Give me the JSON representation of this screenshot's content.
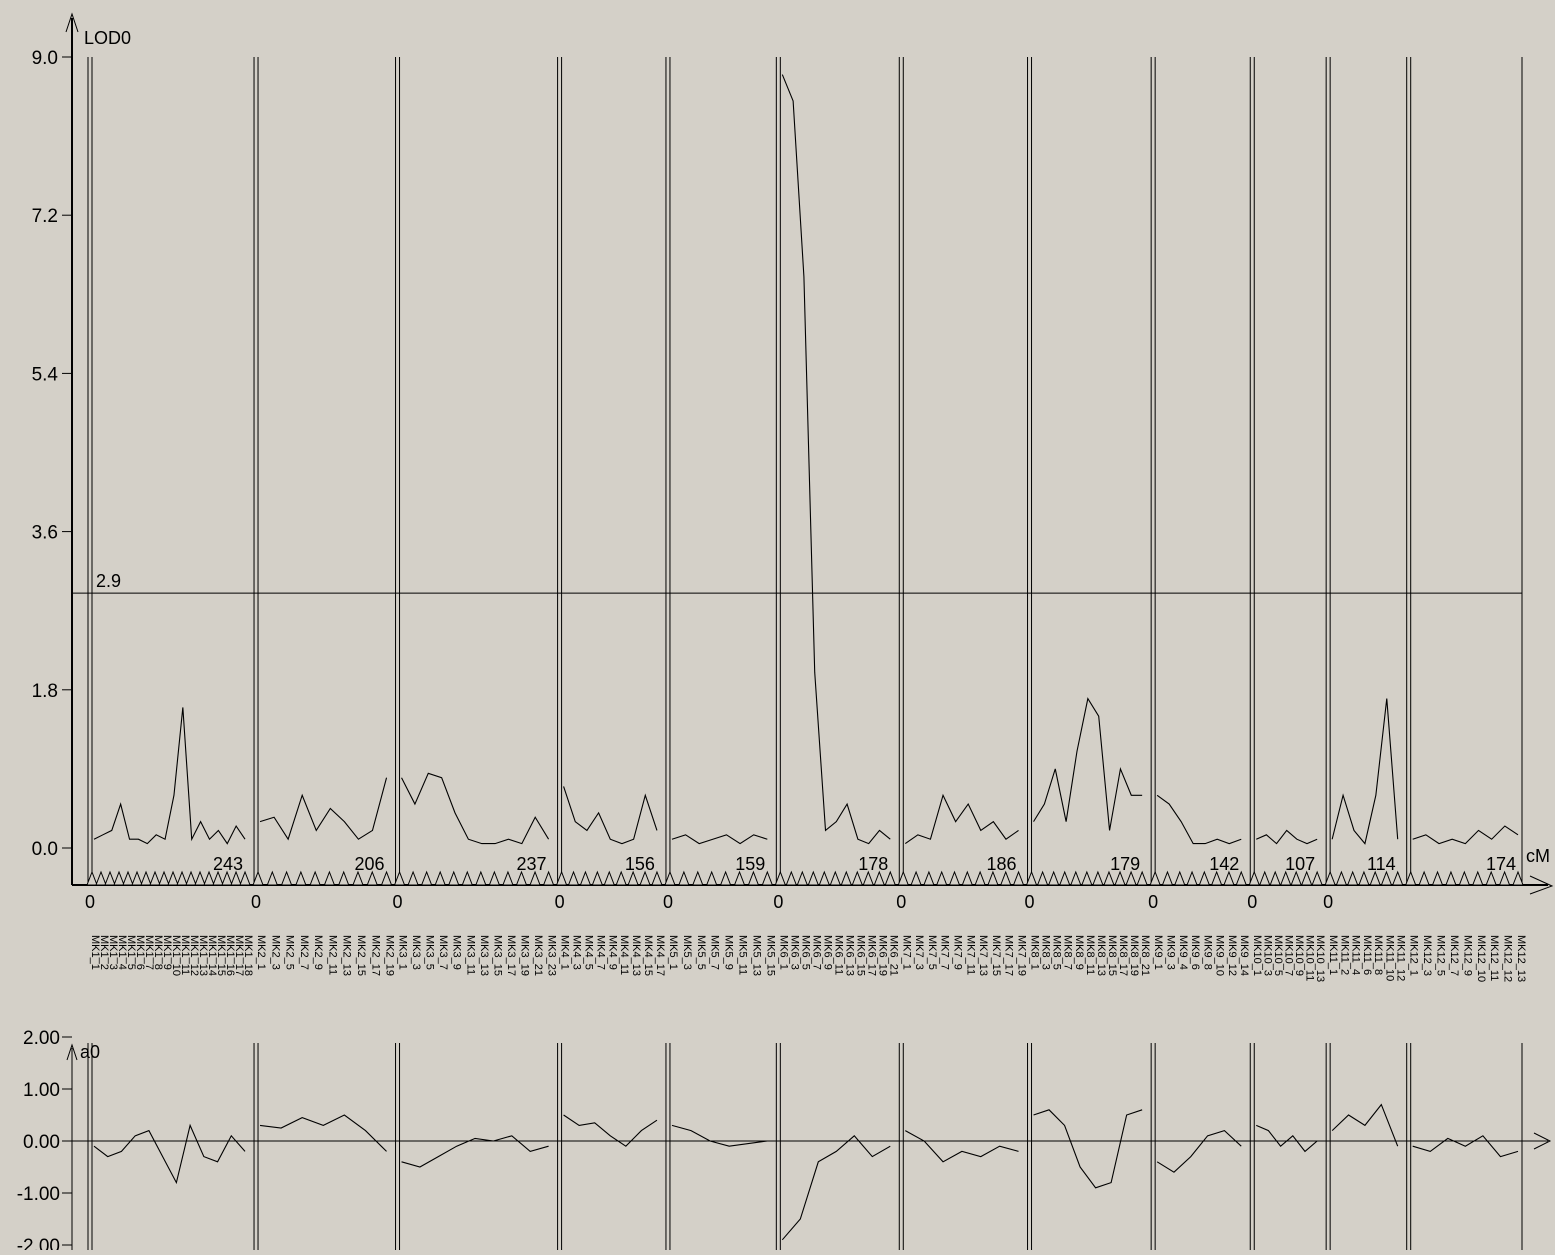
{
  "chart_data": [
    {
      "type": "line",
      "panel": "LOD profile",
      "ylabel": "LOD0",
      "xlabel": "cM",
      "ylim": [
        0.0,
        9.0
      ],
      "y_ticks": [
        "0.0",
        "1.8",
        "3.6",
        "5.4",
        "7.2",
        "9.0"
      ],
      "threshold": {
        "value": 2.9,
        "label": "2.9"
      },
      "chromosomes": [
        {
          "start_label": "0",
          "length": 243,
          "length_label": "243",
          "lod": [
            0.1,
            0.15,
            0.2,
            0.5,
            0.1,
            0.1,
            0.05,
            0.15,
            0.1,
            0.6,
            1.6,
            0.1,
            0.3,
            0.1,
            0.2,
            0.05,
            0.25,
            0.1
          ],
          "markers": [
            "MK1_1",
            "MK1_2",
            "MK1_3",
            "MK1_4",
            "MK1_5",
            "MK1_6",
            "MK1_7",
            "MK1_8",
            "MK1_9",
            "MK1_10",
            "MK1_11",
            "MK1_12",
            "MK1_13",
            "MK1_14",
            "MK1_15",
            "MK1_16",
            "MK1_17",
            "MK1_18"
          ]
        },
        {
          "start_label": "0",
          "length": 206,
          "length_label": "206",
          "lod": [
            0.3,
            0.35,
            0.1,
            0.6,
            0.2,
            0.45,
            0.3,
            0.1,
            0.2,
            0.8
          ],
          "markers": [
            "MK2_1",
            "MK2_3",
            "MK2_5",
            "MK2_7",
            "MK2_9",
            "MK2_11",
            "MK2_13",
            "MK2_15",
            "MK2_17",
            "MK2_19"
          ]
        },
        {
          "start_label": "0",
          "length": 237,
          "length_label": "237",
          "lod": [
            0.8,
            0.5,
            0.85,
            0.8,
            0.4,
            0.1,
            0.05,
            0.05,
            0.1,
            0.05,
            0.35,
            0.1
          ],
          "markers": [
            "MK3_1",
            "MK3_3",
            "MK3_5",
            "MK3_7",
            "MK3_9",
            "MK3_11",
            "MK3_13",
            "MK3_15",
            "MK3_17",
            "MK3_19",
            "MK3_21",
            "MK3_23"
          ]
        },
        {
          "start_label": "0",
          "length": 156,
          "length_label": "156",
          "lod": [
            0.7,
            0.3,
            0.2,
            0.4,
            0.1,
            0.05,
            0.1,
            0.6,
            0.2
          ],
          "markers": [
            "MK4_1",
            "MK4_3",
            "MK4_5",
            "MK4_7",
            "MK4_9",
            "MK4_11",
            "MK4_13",
            "MK4_15",
            "MK4_17"
          ]
        },
        {
          "start_label": "0",
          "length": 159,
          "length_label": "159",
          "lod": [
            0.1,
            0.15,
            0.05,
            0.1,
            0.15,
            0.05,
            0.15,
            0.1
          ],
          "markers": [
            "MK5_1",
            "MK5_3",
            "MK5_5",
            "MK5_7",
            "MK5_9",
            "MK5_11",
            "MK5_13",
            "MK5_15"
          ]
        },
        {
          "start_label": "0",
          "length": 178,
          "length_label": "178",
          "lod": [
            8.8,
            8.5,
            6.5,
            2.0,
            0.2,
            0.3,
            0.5,
            0.1,
            0.05,
            0.2,
            0.1
          ],
          "markers": [
            "MK6_1",
            "MK6_3",
            "MK6_5",
            "MK6_7",
            "MK6_9",
            "MK6_11",
            "MK6_13",
            "MK6_15",
            "MK6_17",
            "MK6_19",
            "MK6_21"
          ]
        },
        {
          "start_label": "0",
          "length": 186,
          "length_label": "186",
          "lod": [
            0.05,
            0.15,
            0.1,
            0.6,
            0.3,
            0.5,
            0.2,
            0.3,
            0.1,
            0.2
          ],
          "markers": [
            "MK7_1",
            "MK7_3",
            "MK7_5",
            "MK7_7",
            "MK7_9",
            "MK7_11",
            "MK7_13",
            "MK7_15",
            "MK7_17",
            "MK7_19"
          ]
        },
        {
          "start_label": "0",
          "length": 179,
          "length_label": "179",
          "lod": [
            0.3,
            0.5,
            0.9,
            0.3,
            1.1,
            1.7,
            1.5,
            0.2,
            0.9,
            0.6,
            0.6
          ],
          "markers": [
            "MK8_1",
            "MK8_3",
            "MK8_5",
            "MK8_7",
            "MK8_9",
            "MK8_11",
            "MK8_13",
            "MK8_15",
            "MK8_17",
            "MK8_19",
            "MK8_21"
          ]
        },
        {
          "start_label": "0",
          "length": 142,
          "length_label": "142",
          "lod": [
            0.6,
            0.5,
            0.3,
            0.05,
            0.05,
            0.1,
            0.05,
            0.1
          ],
          "markers": [
            "MK9_1",
            "MK9_3",
            "MK9_4",
            "MK9_6",
            "MK9_8",
            "MK9_10",
            "MK9_12",
            "MK9_14"
          ]
        },
        {
          "start_label": "0",
          "length": 107,
          "length_label": "107",
          "lod": [
            0.1,
            0.15,
            0.05,
            0.2,
            0.1,
            0.05,
            0.1
          ],
          "markers": [
            "MK10_1",
            "MK10_3",
            "MK10_5",
            "MK10_7",
            "MK10_9",
            "MK10_11",
            "MK10_13"
          ]
        },
        {
          "start_label": "0",
          "length": 114,
          "length_label": "114",
          "lod": [
            0.1,
            0.6,
            0.2,
            0.05,
            0.6,
            1.7,
            0.1
          ],
          "markers": [
            "MK11_1",
            "MK11_2",
            "MK11_4",
            "MK11_6",
            "MK11_8",
            "MK11_10",
            "MK11_12"
          ]
        },
        {
          "start_label": "",
          "length": 174,
          "length_label": "174",
          "lod": [
            0.1,
            0.15,
            0.05,
            0.1,
            0.05,
            0.2,
            0.1,
            0.25,
            0.15
          ],
          "markers": [
            "MK12_1",
            "MK12_3",
            "MK12_5",
            "MK12_7",
            "MK12_9",
            "MK12_10",
            "MK12_11",
            "MK12_12",
            "MK12_13"
          ]
        }
      ]
    },
    {
      "type": "line",
      "panel": "additive effect",
      "ylabel": "a0",
      "ylim": [
        -2.0,
        2.0
      ],
      "y_ticks": [
        "2.00",
        "1.00",
        "0.00",
        "-1.00",
        "-2.00"
      ],
      "series": [
        {
          "values_by_chromosome": [
            [
              -0.1,
              -0.3,
              -0.2,
              0.1,
              0.2,
              -0.3,
              -0.8,
              0.3,
              -0.3,
              -0.4,
              0.1,
              -0.2
            ],
            [
              0.3,
              0.25,
              0.45,
              0.3,
              0.5,
              0.2,
              -0.2
            ],
            [
              -0.4,
              -0.5,
              -0.3,
              -0.1,
              0.05,
              0.0,
              0.1,
              -0.2,
              -0.1
            ],
            [
              0.5,
              0.3,
              0.35,
              0.1,
              -0.1,
              0.2,
              0.4
            ],
            [
              0.3,
              0.2,
              0.0,
              -0.1,
              -0.05,
              0.0
            ],
            [
              -1.9,
              -1.5,
              -0.4,
              -0.2,
              0.1,
              -0.3,
              -0.1
            ],
            [
              0.2,
              0.0,
              -0.4,
              -0.2,
              -0.3,
              -0.1,
              -0.2
            ],
            [
              0.5,
              0.6,
              0.3,
              -0.5,
              -0.9,
              -0.8,
              0.5,
              0.6
            ],
            [
              -0.4,
              -0.6,
              -0.3,
              0.1,
              0.2,
              -0.1
            ],
            [
              0.3,
              0.2,
              -0.1,
              0.1,
              -0.2,
              0.0
            ],
            [
              0.2,
              0.5,
              0.3,
              0.7,
              -0.1
            ],
            [
              -0.1,
              -0.2,
              0.05,
              -0.1,
              0.1,
              -0.3,
              -0.2
            ]
          ]
        }
      ]
    }
  ]
}
